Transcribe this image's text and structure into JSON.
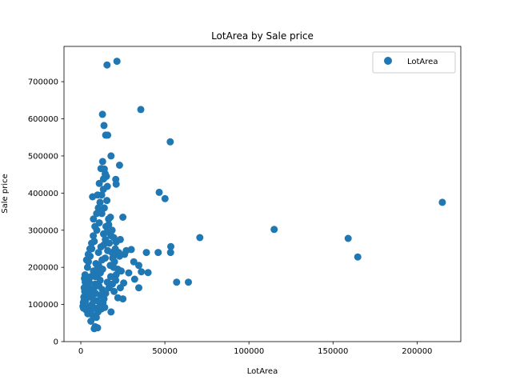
{
  "chart_data": {
    "type": "scatter",
    "title": "LotArea by Sale price",
    "xlabel": "LotArea",
    "ylabel": "Sale price",
    "xlim": [
      -10000,
      226000
    ],
    "ylim": [
      0,
      795000
    ],
    "xticks": [
      0,
      50000,
      100000,
      150000,
      200000
    ],
    "xtick_labels": [
      "0",
      "50000",
      "100000",
      "150000",
      "200000"
    ],
    "yticks": [
      0,
      100000,
      200000,
      300000,
      400000,
      500000,
      600000,
      700000
    ],
    "ytick_labels": [
      "0",
      "100000",
      "200000",
      "300000",
      "400000",
      "500000",
      "600000",
      "700000"
    ],
    "grid": false,
    "legend": {
      "position": "top-right",
      "entries": [
        "LotArea"
      ]
    },
    "colors": {
      "series": "#1f77b4",
      "frame": "#000000",
      "background": "#ffffff"
    },
    "series": [
      {
        "name": "LotArea",
        "points": [
          [
            21500,
            755000
          ],
          [
            15600,
            745000
          ],
          [
            35700,
            625000
          ],
          [
            12900,
            612000
          ],
          [
            13800,
            582000
          ],
          [
            14800,
            556000
          ],
          [
            16000,
            556000
          ],
          [
            53200,
            538000
          ],
          [
            18000,
            500000
          ],
          [
            13000,
            485000
          ],
          [
            23000,
            475000
          ],
          [
            12000,
            466000
          ],
          [
            14000,
            465000
          ],
          [
            14500,
            452000
          ],
          [
            15200,
            445000
          ],
          [
            13500,
            438000
          ],
          [
            20800,
            437000
          ],
          [
            21000,
            424000
          ],
          [
            11000,
            426000
          ],
          [
            15800,
            418000
          ],
          [
            46600,
            402000
          ],
          [
            50100,
            385000
          ],
          [
            7000,
            390000
          ],
          [
            10000,
            395000
          ],
          [
            215000,
            375000
          ],
          [
            25000,
            335000
          ],
          [
            7500,
            330000
          ],
          [
            115000,
            302000
          ],
          [
            70800,
            280000
          ],
          [
            159000,
            278000
          ],
          [
            53500,
            256000
          ],
          [
            23500,
            275000
          ],
          [
            21000,
            268000
          ],
          [
            30000,
            248000
          ],
          [
            39000,
            240000
          ],
          [
            46000,
            240000
          ],
          [
            53400,
            240000
          ],
          [
            164700,
            228000
          ],
          [
            31500,
            215000
          ],
          [
            34500,
            205000
          ],
          [
            36000,
            188000
          ],
          [
            40000,
            186000
          ],
          [
            28500,
            185000
          ],
          [
            32000,
            168000
          ],
          [
            25500,
            158000
          ],
          [
            57000,
            160000
          ],
          [
            64000,
            160000
          ],
          [
            34500,
            145000
          ],
          [
            23500,
            145000
          ],
          [
            25000,
            115000
          ],
          [
            22000,
            118000
          ],
          [
            18000,
            80000
          ],
          [
            6000,
            55000
          ],
          [
            8500,
            40000
          ],
          [
            10000,
            37000
          ],
          [
            8000,
            35000
          ],
          [
            1300,
            95000
          ],
          [
            1500,
            105000
          ],
          [
            1800,
            120000
          ],
          [
            2000,
            145000
          ],
          [
            2200,
            170000
          ],
          [
            2500,
            180000
          ],
          [
            3000,
            125000
          ],
          [
            3500,
            140000
          ],
          [
            4000,
            200000
          ],
          [
            4500,
            215000
          ],
          [
            5000,
            160000
          ],
          [
            5500,
            230000
          ],
          [
            6000,
            175000
          ],
          [
            6500,
            250000
          ],
          [
            7000,
            135000
          ],
          [
            7500,
            190000
          ],
          [
            8000,
            270000
          ],
          [
            8500,
            155000
          ],
          [
            9000,
            210000
          ],
          [
            9500,
            300000
          ],
          [
            10000,
            180000
          ],
          [
            10500,
            240000
          ],
          [
            11000,
            320000
          ],
          [
            11500,
            165000
          ],
          [
            12000,
            255000
          ],
          [
            12500,
            345000
          ],
          [
            13000,
            195000
          ],
          [
            13500,
            290000
          ],
          [
            14000,
            360000
          ],
          [
            14500,
            225000
          ],
          [
            15000,
            310000
          ],
          [
            15500,
            380000
          ],
          [
            16000,
            245000
          ],
          [
            16500,
            330000
          ],
          [
            17000,
            265000
          ],
          [
            17500,
            205000
          ],
          [
            18000,
            285000
          ],
          [
            18500,
            240000
          ],
          [
            19000,
            225000
          ],
          [
            19500,
            200000
          ],
          [
            20000,
            215000
          ],
          [
            20500,
            250000
          ],
          [
            21000,
            180000
          ],
          [
            21500,
            235000
          ],
          [
            22000,
            195000
          ],
          [
            22500,
            240000
          ],
          [
            23000,
            230000
          ],
          [
            24000,
            190000
          ],
          [
            26000,
            235000
          ],
          [
            27000,
            245000
          ],
          [
            6800,
            120000
          ],
          [
            7800,
            145000
          ],
          [
            8800,
            130000
          ],
          [
            9800,
            110000
          ],
          [
            10800,
            150000
          ],
          [
            11800,
            125000
          ],
          [
            12800,
            140000
          ],
          [
            13800,
            115000
          ],
          [
            14800,
            130000
          ],
          [
            15800,
            160000
          ],
          [
            16800,
            145000
          ],
          [
            17800,
            175000
          ],
          [
            18800,
            155000
          ],
          [
            19800,
            135000
          ],
          [
            20800,
            165000
          ],
          [
            3200,
            85000
          ],
          [
            4200,
            75000
          ],
          [
            5200,
            95000
          ],
          [
            6200,
            85000
          ],
          [
            7200,
            70000
          ],
          [
            8200,
            90000
          ],
          [
            9200,
            65000
          ],
          [
            10200,
            80000
          ],
          [
            11200,
            95000
          ],
          [
            12200,
            88000
          ],
          [
            13200,
            105000
          ],
          [
            14200,
            92000
          ],
          [
            2800,
            110000
          ],
          [
            3800,
            130000
          ],
          [
            4800,
            145000
          ],
          [
            5800,
            120000
          ],
          [
            6600,
            100000
          ],
          [
            7600,
            110000
          ],
          [
            8600,
            175000
          ],
          [
            9600,
            195000
          ],
          [
            10600,
            205000
          ],
          [
            11600,
            185000
          ],
          [
            12600,
            220000
          ],
          [
            13600,
            260000
          ],
          [
            14600,
            275000
          ],
          [
            15600,
            295000
          ],
          [
            16600,
            315000
          ],
          [
            17600,
            335000
          ],
          [
            18600,
            300000
          ],
          [
            19600,
            280000
          ],
          [
            10400,
            360000
          ],
          [
            11400,
            375000
          ],
          [
            12400,
            395000
          ],
          [
            13400,
            410000
          ],
          [
            9400,
            345000
          ],
          [
            8400,
            310000
          ],
          [
            7400,
            285000
          ],
          [
            6400,
            265000
          ],
          [
            5400,
            250000
          ],
          [
            4400,
            235000
          ],
          [
            3400,
            220000
          ],
          [
            2600,
            160000
          ],
          [
            2300,
            135000
          ],
          [
            1900,
            110000
          ],
          [
            1600,
            90000
          ]
        ]
      }
    ]
  }
}
